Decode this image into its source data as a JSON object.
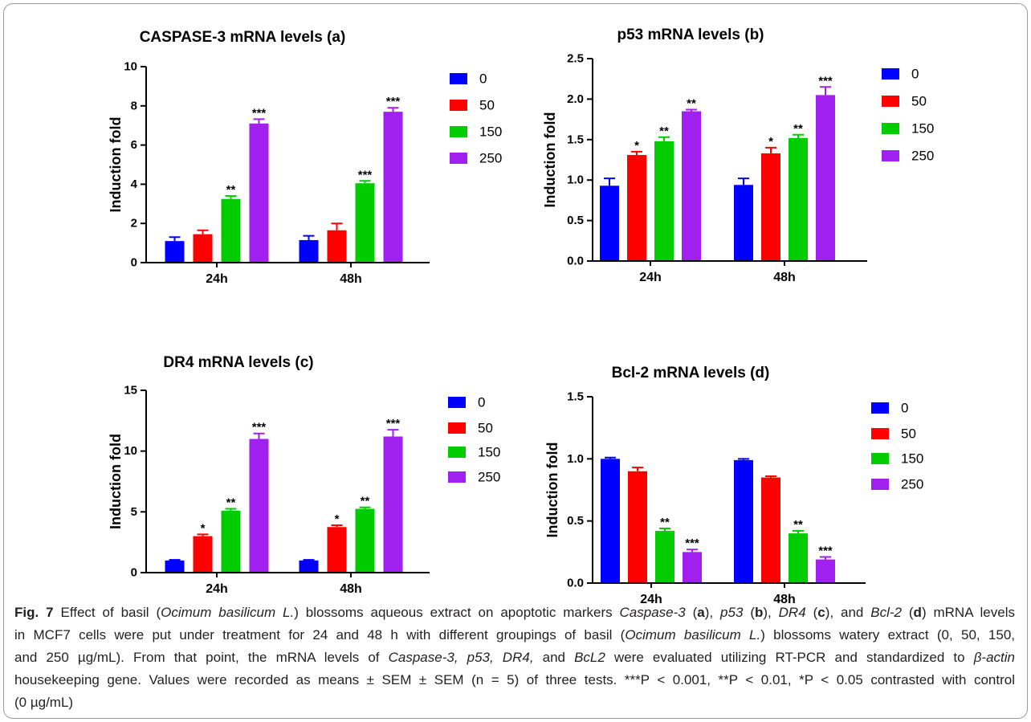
{
  "chart_data": [
    {
      "type": "bar",
      "title": "CASPASE-3 mRNA levels (a)",
      "ylabel": "Induction fold",
      "categories": [
        "24h",
        "48h"
      ],
      "ylim": [
        0,
        10
      ],
      "yticks": [
        "0",
        "2",
        "4",
        "6",
        "8",
        "10"
      ],
      "grid": false,
      "legend": "right",
      "series": [
        {
          "name": "0",
          "color": "#0000ff",
          "values": [
            1.1,
            1.15
          ],
          "errors": [
            0.2,
            0.22
          ],
          "significance": [
            "",
            ""
          ]
        },
        {
          "name": "50",
          "color": "#ff0000",
          "values": [
            1.45,
            1.65
          ],
          "errors": [
            0.2,
            0.35
          ],
          "significance": [
            "",
            ""
          ]
        },
        {
          "name": "150",
          "color": "#00cc00",
          "values": [
            3.25,
            4.05
          ],
          "errors": [
            0.15,
            0.12
          ],
          "significance": [
            "**",
            "***"
          ]
        },
        {
          "name": "250",
          "color": "#a020f0",
          "values": [
            7.1,
            7.7
          ],
          "errors": [
            0.22,
            0.2
          ],
          "significance": [
            "***",
            "***"
          ]
        }
      ]
    },
    {
      "type": "bar",
      "title": "p53 mRNA levels (b)",
      "ylabel": "Induction fold",
      "categories": [
        "24h",
        "48h"
      ],
      "ylim": [
        0,
        2.5
      ],
      "yticks": [
        "0.0",
        "0.5",
        "1.0",
        "1.5",
        "2.0",
        "2.5"
      ],
      "grid": false,
      "legend": "right",
      "series": [
        {
          "name": "0",
          "color": "#0000ff",
          "values": [
            0.93,
            0.94
          ],
          "errors": [
            0.09,
            0.08
          ],
          "significance": [
            "",
            ""
          ]
        },
        {
          "name": "50",
          "color": "#ff0000",
          "values": [
            1.31,
            1.33
          ],
          "errors": [
            0.04,
            0.07
          ],
          "significance": [
            "*",
            "*"
          ]
        },
        {
          "name": "150",
          "color": "#00cc00",
          "values": [
            1.48,
            1.52
          ],
          "errors": [
            0.05,
            0.04
          ],
          "significance": [
            "**",
            "**"
          ]
        },
        {
          "name": "250",
          "color": "#a020f0",
          "values": [
            1.85,
            2.05
          ],
          "errors": [
            0.02,
            0.1
          ],
          "significance": [
            "**",
            "***"
          ]
        }
      ]
    },
    {
      "type": "bar",
      "title": "DR4 mRNA levels (c)",
      "ylabel": "Induction fold",
      "categories": [
        "24h",
        "48h"
      ],
      "ylim": [
        0,
        15
      ],
      "yticks": [
        "0",
        "5",
        "10",
        "15"
      ],
      "grid": false,
      "legend": "right",
      "series": [
        {
          "name": "0",
          "color": "#0000ff",
          "values": [
            1.0,
            1.0
          ],
          "errors": [
            0.05,
            0.05
          ],
          "significance": [
            "",
            ""
          ]
        },
        {
          "name": "50",
          "color": "#ff0000",
          "values": [
            3.0,
            3.75
          ],
          "errors": [
            0.15,
            0.15
          ],
          "significance": [
            "*",
            "*"
          ]
        },
        {
          "name": "150",
          "color": "#00cc00",
          "values": [
            5.1,
            5.25
          ],
          "errors": [
            0.15,
            0.12
          ],
          "significance": [
            "**",
            "**"
          ]
        },
        {
          "name": "250",
          "color": "#a020f0",
          "values": [
            11.0,
            11.2
          ],
          "errors": [
            0.45,
            0.55
          ],
          "significance": [
            "***",
            "***"
          ]
        }
      ]
    },
    {
      "type": "bar",
      "title": "Bcl-2 mRNA levels (d)",
      "ylabel": "Induction fold",
      "categories": [
        "24h",
        "48h"
      ],
      "ylim": [
        0,
        1.5
      ],
      "yticks": [
        "0.0",
        "0.5",
        "1.0",
        "1.5"
      ],
      "grid": false,
      "legend": "right",
      "series": [
        {
          "name": "0",
          "color": "#0000ff",
          "values": [
            1.0,
            0.99
          ],
          "errors": [
            0.01,
            0.01
          ],
          "significance": [
            "",
            ""
          ]
        },
        {
          "name": "50",
          "color": "#ff0000",
          "values": [
            0.9,
            0.85
          ],
          "errors": [
            0.03,
            0.01
          ],
          "significance": [
            "",
            ""
          ]
        },
        {
          "name": "150",
          "color": "#00cc00",
          "values": [
            0.42,
            0.4
          ],
          "errors": [
            0.02,
            0.02
          ],
          "significance": [
            "**",
            "**"
          ]
        },
        {
          "name": "250",
          "color": "#a020f0",
          "values": [
            0.25,
            0.19
          ],
          "errors": [
            0.02,
            0.02
          ],
          "significance": [
            "***",
            "***"
          ]
        }
      ]
    }
  ],
  "caption": {
    "lines": [
      [
        {
          "text": "Fig. 7",
          "emphasis": "bold"
        },
        {
          "text": "  Effect of basil ("
        },
        {
          "text": "Ocimum basilicum L.",
          "emphasis": "italic"
        },
        {
          "text": ") blossoms aqueous extract on apoptotic markers "
        },
        {
          "text": "Caspase-3",
          "emphasis": "italic"
        },
        {
          "text": " ("
        },
        {
          "text": "a",
          "emphasis": "bold"
        },
        {
          "text": "), "
        },
        {
          "text": "p53",
          "emphasis": "italic"
        },
        {
          "text": " ("
        },
        {
          "text": "b",
          "emphasis": "bold"
        },
        {
          "text": "), "
        },
        {
          "text": "DR4",
          "emphasis": "italic"
        },
        {
          "text": " ("
        },
        {
          "text": "c",
          "emphasis": "bold"
        },
        {
          "text": "), and "
        },
        {
          "text": "Bcl-2",
          "emphasis": "italic"
        },
        {
          "text": " ("
        },
        {
          "text": "d",
          "emphasis": "bold"
        },
        {
          "text": ") mRNA levels"
        }
      ],
      [
        {
          "text": "in MCF7 cells were put under treatment for 24 and 48 h with different groupings of basil ("
        },
        {
          "text": "Ocimum basilicum L.",
          "emphasis": "italic"
        },
        {
          "text": ") blossoms watery extract (0, 50, 150,"
        }
      ],
      [
        {
          "text": "and 250 µg/mL). From that point, the mRNA levels of "
        },
        {
          "text": "Caspase-3, p53, DR4,",
          "emphasis": "italic"
        },
        {
          "text": " and "
        },
        {
          "text": "BcL2",
          "emphasis": "italic"
        },
        {
          "text": " were evaluated utilizing RT-PCR and standardized to "
        },
        {
          "text": "β-actin",
          "emphasis": "italic"
        }
      ],
      [
        {
          "text": "housekeeping gene. Values were recorded as means ± SEM ± SEM (n = 5) of three tests. ***P < 0.001, **P < 0.01, *P < 0.05 contrasted with control"
        }
      ],
      [
        {
          "text": "(0 µg/mL)"
        }
      ]
    ]
  }
}
